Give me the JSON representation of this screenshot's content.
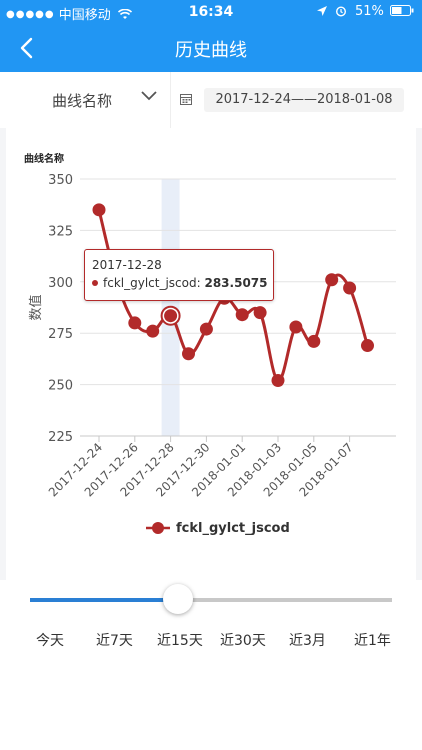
{
  "status_bar": {
    "carrier": "中国移动",
    "time": "16:34",
    "battery": "51%"
  },
  "nav": {
    "title": "历史曲线",
    "back_icon": "chevron-left-icon"
  },
  "filter": {
    "select_label": "曲线名称",
    "date_range": "2017-12-24——2018-01-08"
  },
  "chart_data": {
    "type": "line",
    "title": "曲线名称",
    "ylabel": "数值",
    "xlabel": "",
    "ylim": [
      225,
      350
    ],
    "yticks": [
      225,
      250,
      275,
      300,
      325,
      350
    ],
    "x": [
      "2017-12-24",
      "2017-12-25",
      "2017-12-26",
      "2017-12-27",
      "2017-12-28",
      "2017-12-29",
      "2017-12-30",
      "2017-12-31",
      "2018-01-01",
      "2018-01-02",
      "2018-01-03",
      "2018-01-04",
      "2018-01-05",
      "2018-01-06",
      "2018-01-07",
      "2018-01-08"
    ],
    "xtick_labels": [
      "2017-12-24",
      "2017-12-26",
      "2017-12-28",
      "2017-12-30",
      "2018-01-01",
      "2018-01-03",
      "2018-01-05",
      "2018-01-07"
    ],
    "series": [
      {
        "name": "fckl_gylct_jscod",
        "color": "#b22a2a",
        "values": [
          335,
          300,
          280,
          276,
          283.5075,
          265,
          277,
          292,
          284,
          285,
          252,
          278,
          271,
          301,
          297,
          269
        ]
      }
    ],
    "highlight": {
      "index": 4,
      "date": "2017-12-28",
      "label": "fckl_gylct_jscod:",
      "value": "283.5075"
    },
    "legend": "bottom-center",
    "grid": true
  },
  "range_selector": {
    "options": [
      "今天",
      "近7天",
      "近15天",
      "近30天",
      "近3月",
      "近1年"
    ],
    "selected_fraction": 0.41
  }
}
